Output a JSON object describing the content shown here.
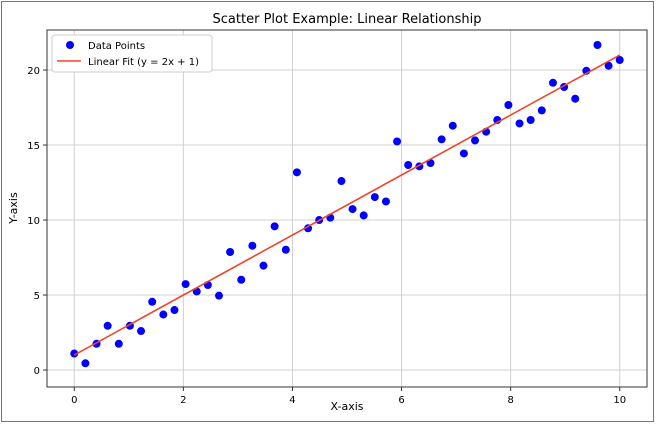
{
  "chart_data": {
    "type": "scatter",
    "title": "Scatter Plot Example: Linear Relationship",
    "xlabel": "X-axis",
    "ylabel": "Y-axis",
    "xlim": [
      -0.5,
      10.5
    ],
    "ylim": [
      -1.13,
      22.67
    ],
    "xticks": [
      0,
      2,
      4,
      6,
      8,
      10
    ],
    "yticks": [
      0,
      5,
      10,
      15,
      20
    ],
    "grid": true,
    "legend": "top-left",
    "series": [
      {
        "name": "Data Points",
        "kind": "scatter",
        "color": "#0000ff",
        "x": [
          0,
          0.204,
          0.408,
          0.612,
          0.816,
          1.02,
          1.224,
          1.429,
          1.633,
          1.837,
          2.041,
          2.245,
          2.449,
          2.653,
          2.857,
          3.061,
          3.265,
          3.469,
          3.673,
          3.878,
          4.082,
          4.286,
          4.49,
          4.694,
          4.898,
          5.102,
          5.306,
          5.51,
          5.714,
          5.918,
          6.122,
          6.327,
          6.531,
          6.735,
          6.939,
          7.143,
          7.347,
          7.551,
          7.755,
          7.959,
          8.163,
          8.367,
          8.571,
          8.776,
          8.98,
          9.184,
          9.388,
          9.592,
          9.796,
          10
        ],
        "y": [
          1.1,
          0.45,
          1.75,
          2.95,
          1.75,
          2.95,
          2.6,
          4.55,
          3.7,
          4.0,
          5.73,
          5.24,
          5.67,
          4.96,
          7.87,
          6.02,
          8.29,
          6.96,
          9.58,
          8.02,
          13.18,
          9.45,
          10.0,
          10.16,
          12.6,
          10.73,
          10.31,
          11.53,
          11.24,
          15.24,
          13.67,
          13.58,
          13.8,
          15.38,
          16.29,
          14.44,
          15.31,
          15.89,
          16.67,
          17.67,
          16.44,
          16.67,
          17.31,
          19.15,
          18.87,
          18.09,
          19.95,
          21.67,
          20.29,
          20.67
        ]
      },
      {
        "name": "Linear Fit (y = 2x + 1)",
        "kind": "line",
        "color": "#f0452a",
        "x": [
          0,
          10
        ],
        "y": [
          1,
          21
        ]
      }
    ]
  }
}
